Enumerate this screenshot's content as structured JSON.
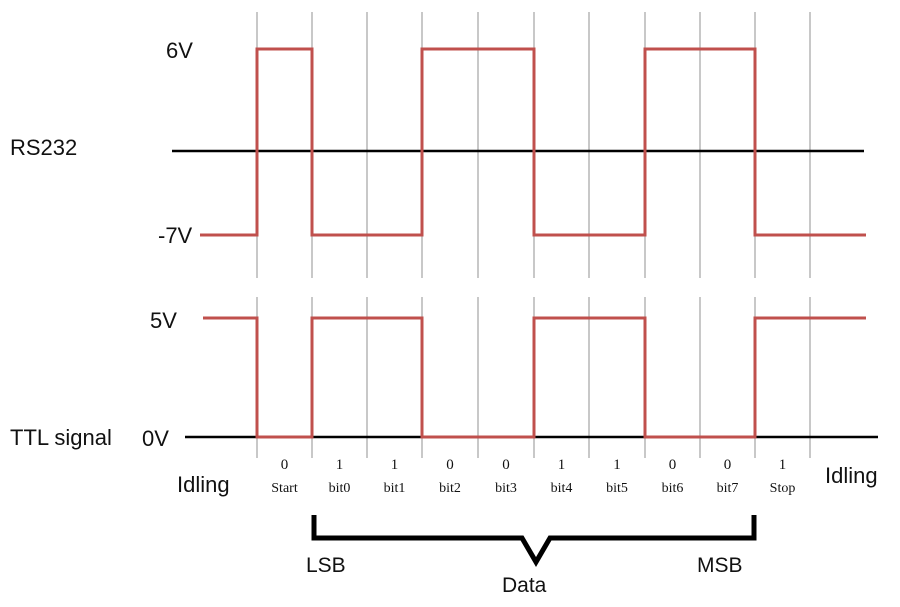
{
  "colors": {
    "signal": "#c0504d",
    "grid": "#c8c8c8",
    "axis": "#000000",
    "text": "#111111"
  },
  "rs232": {
    "label": "RS232",
    "high_label": "6V",
    "low_label": "-7V"
  },
  "ttl": {
    "label": "TTL signal",
    "high_label": "5V",
    "low_label": "0V"
  },
  "idle_left": "Idling",
  "idle_right": "Idling",
  "bits": [
    {
      "value": "0",
      "name": "Start"
    },
    {
      "value": "1",
      "name": "bit0"
    },
    {
      "value": "1",
      "name": "bit1"
    },
    {
      "value": "0",
      "name": "bit2"
    },
    {
      "value": "0",
      "name": "bit3"
    },
    {
      "value": "1",
      "name": "bit4"
    },
    {
      "value": "1",
      "name": "bit5"
    },
    {
      "value": "0",
      "name": "bit6"
    },
    {
      "value": "0",
      "name": "bit7"
    },
    {
      "value": "1",
      "name": "Stop"
    }
  ],
  "bracket": {
    "lsb": "LSB",
    "msb": "MSB",
    "data": "Data"
  }
}
